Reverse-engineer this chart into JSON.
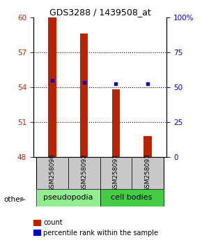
{
  "title": "GDS3288 / 1439508_at",
  "samples": [
    "GSM258090",
    "GSM258092",
    "GSM258091",
    "GSM258093"
  ],
  "bar_values": [
    60.0,
    58.6,
    53.8,
    49.8
  ],
  "dot_values": [
    54.6,
    54.4,
    54.3,
    54.3
  ],
  "bar_color": "#BB2200",
  "dot_color": "#0000CC",
  "ylim_left": [
    48,
    60
  ],
  "ylim_right": [
    0,
    100
  ],
  "yticks_left": [
    48,
    51,
    54,
    57,
    60
  ],
  "yticks_right": [
    0,
    25,
    50,
    75,
    100
  ],
  "grid_lines": [
    51,
    54,
    57
  ],
  "bar_width": 0.25,
  "legend_count_label": "count",
  "legend_pct_label": "percentile rank within the sample",
  "other_label": "other",
  "group1_label": "pseudopodia",
  "group2_label": "cell bodies",
  "group1_color": "#90EE90",
  "group2_color": "#44CC44",
  "sample_bg_color": "#C8C8C8",
  "title_fontsize": 9,
  "tick_fontsize": 7.5,
  "sample_fontsize": 6.5,
  "group_fontsize": 8,
  "legend_fontsize": 7
}
